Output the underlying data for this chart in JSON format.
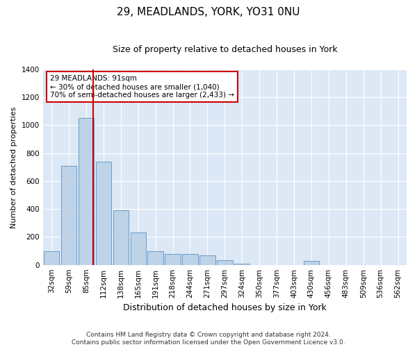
{
  "title": "29, MEADLANDS, YORK, YO31 0NU",
  "subtitle": "Size of property relative to detached houses in York",
  "xlabel": "Distribution of detached houses by size in York",
  "ylabel": "Number of detached properties",
  "categories": [
    "32sqm",
    "59sqm",
    "85sqm",
    "112sqm",
    "138sqm",
    "165sqm",
    "191sqm",
    "218sqm",
    "244sqm",
    "271sqm",
    "297sqm",
    "324sqm",
    "350sqm",
    "377sqm",
    "403sqm",
    "430sqm",
    "456sqm",
    "483sqm",
    "509sqm",
    "536sqm",
    "562sqm"
  ],
  "values": [
    100,
    710,
    1050,
    740,
    390,
    230,
    100,
    80,
    80,
    70,
    35,
    10,
    0,
    0,
    0,
    30,
    0,
    0,
    0,
    0,
    0
  ],
  "bar_color": "#bed3e8",
  "bar_edge_color": "#5a8fc0",
  "vline_color": "#cc0000",
  "vline_x_index": 2.5,
  "annotation_text": "29 MEADLANDS: 91sqm\n← 30% of detached houses are smaller (1,040)\n70% of semi-detached houses are larger (2,433) →",
  "annotation_box_color": "white",
  "annotation_box_edge_color": "#cc0000",
  "ylim": [
    0,
    1400
  ],
  "yticks": [
    0,
    200,
    400,
    600,
    800,
    1000,
    1200,
    1400
  ],
  "background_color": "#dce8f5",
  "footer_text": "Contains HM Land Registry data © Crown copyright and database right 2024.\nContains public sector information licensed under the Open Government Licence v3.0.",
  "title_fontsize": 11,
  "subtitle_fontsize": 9,
  "ylabel_fontsize": 8,
  "xlabel_fontsize": 9,
  "tick_fontsize": 7.5,
  "annotation_fontsize": 7.5,
  "footer_fontsize": 6.5
}
